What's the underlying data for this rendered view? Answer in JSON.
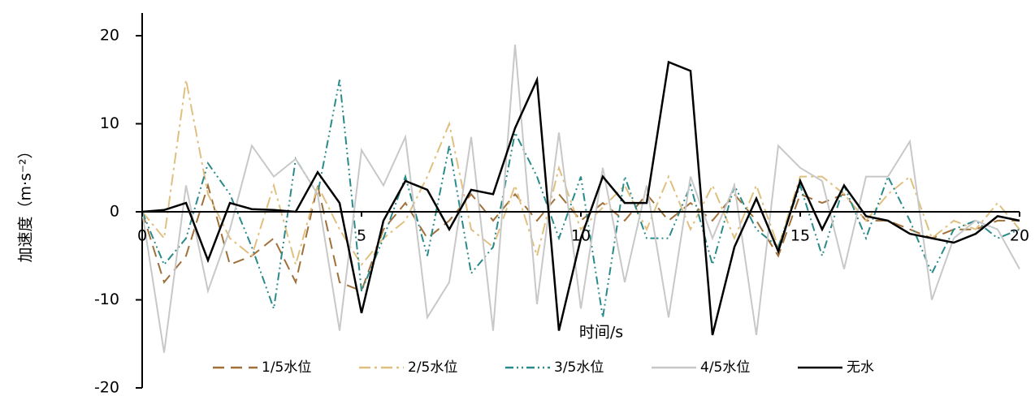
{
  "chart_data": {
    "type": "line",
    "xlabel": "时间/s",
    "ylabel": "加速度（m·s⁻²）",
    "x": [
      0,
      0.5,
      1,
      1.5,
      2,
      2.5,
      3,
      3.5,
      4,
      4.5,
      5,
      5.5,
      6,
      6.5,
      7,
      7.5,
      8,
      8.5,
      9,
      9.5,
      10,
      10.5,
      11,
      11.5,
      12,
      12.5,
      13,
      13.5,
      14,
      14.5,
      15,
      15.5,
      16,
      16.5,
      17,
      17.5,
      18,
      18.5,
      19,
      19.5,
      20
    ],
    "xlim": [
      0,
      20
    ],
    "xticks": [
      0,
      5,
      10,
      15,
      20
    ],
    "ylim": [
      -20,
      20
    ],
    "yticks": [
      -20,
      -10,
      0,
      10,
      20
    ],
    "series": [
      {
        "name": "1/5水位",
        "color": "#a0703a",
        "dash": "dashed",
        "values": [
          0,
          -8,
          -5,
          3,
          -6,
          -5,
          -3,
          -8,
          3,
          -8,
          -9,
          -2,
          1,
          -3,
          -1,
          2,
          -1,
          2,
          -1,
          2,
          -1,
          1,
          -1,
          2,
          -1,
          1,
          -1,
          2,
          -1,
          -5,
          2,
          1,
          2,
          -1,
          -1,
          -2,
          -3,
          -2,
          -2,
          -1,
          -1
        ]
      },
      {
        "name": "2/5水位",
        "color": "#e0c080",
        "dash": "dashdot",
        "values": [
          0,
          -3,
          15,
          2,
          -3,
          -5,
          3,
          -6,
          3,
          -2,
          -6,
          -3,
          -1,
          4,
          10,
          -2,
          -4,
          3,
          -5,
          5,
          -2,
          0.5,
          3,
          -2,
          4,
          -2,
          3,
          -3,
          3,
          -4,
          4,
          4,
          2,
          -1,
          2,
          4,
          -3,
          -1,
          -2,
          1,
          -2
        ]
      },
      {
        "name": "3/5水位",
        "color": "#2a8a8a",
        "dash": "dashdotdot",
        "values": [
          0,
          -6,
          -3,
          5.5,
          2,
          -4,
          -11,
          6,
          2,
          15,
          -9,
          -3,
          4,
          -5,
          7.5,
          -7,
          -4,
          9,
          4,
          -3,
          4,
          -12,
          4,
          -3,
          -3,
          3,
          -6,
          3,
          -2,
          -4,
          3,
          -5,
          3,
          -3,
          4,
          -1,
          -7,
          -2,
          -1,
          -3,
          -2
        ]
      },
      {
        "name": "4/5水位",
        "color": "#c8c8c8",
        "dash": "solid",
        "values": [
          0,
          -16,
          3,
          -9,
          -2,
          7.5,
          4,
          6,
          2,
          -13.5,
          7,
          3,
          8.5,
          -12,
          -8,
          8.5,
          -13.5,
          19,
          -10.5,
          9,
          -11,
          5,
          -8,
          3,
          -12,
          4,
          -3,
          3,
          -14,
          7.5,
          5,
          3.5,
          -6.5,
          4,
          4,
          8,
          -10,
          -3,
          -1,
          -2,
          -6.5
        ]
      },
      {
        "name": "无水",
        "color": "#000000",
        "dash": "solid",
        "values": [
          0,
          0.2,
          1,
          -5.5,
          1,
          0.3,
          0.2,
          0,
          4.5,
          1,
          -11.5,
          -1,
          3.5,
          2.5,
          -2,
          2.5,
          2,
          9.5,
          15,
          -13.5,
          -3,
          4,
          1,
          1,
          17,
          16,
          -14,
          -4,
          1.5,
          -4.5,
          3.5,
          -2,
          3,
          -0.5,
          -1,
          -2.5,
          -3,
          -3.5,
          -2.5,
          -0.5,
          -1
        ]
      }
    ]
  }
}
